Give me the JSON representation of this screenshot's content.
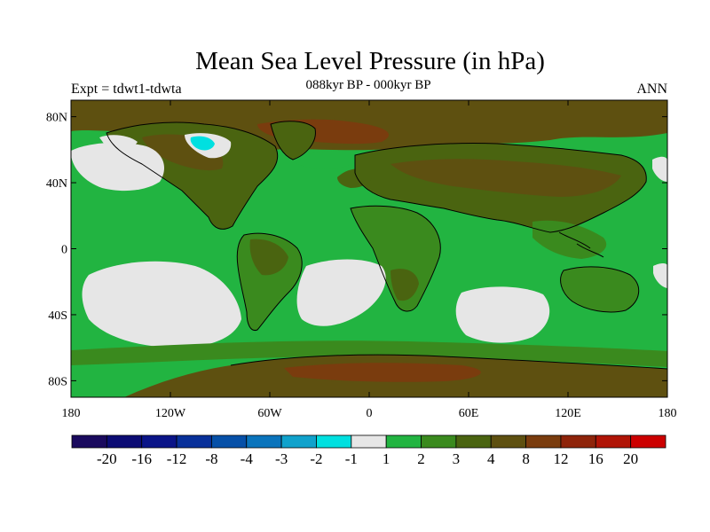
{
  "title": "Mean Sea Level Pressure (in hPa)",
  "subtitle": "088kyr BP - 000kyr BP",
  "left_label": "Expt = tdwt1-tdwta",
  "right_label": "ANN",
  "lat_ticks": [
    "80N",
    "40N",
    "0",
    "40S",
    "80S"
  ],
  "lon_ticks": [
    "180",
    "120W",
    "60W",
    "0",
    "60E",
    "120E",
    "180"
  ],
  "colorbar": {
    "colors": [
      "#1a0a5e",
      "#0c0c74",
      "#0a1488",
      "#08309a",
      "#0650a8",
      "#0a74bc",
      "#10a2cc",
      "#00e0e0",
      "#e6e6e6",
      "#22b441",
      "#3a8a1e",
      "#4a6410",
      "#5e5010",
      "#7a3c0e",
      "#8e240a",
      "#b01406",
      "#cc0000"
    ],
    "labels": [
      "-20",
      "-16",
      "-12",
      "-8",
      "-4",
      "-3",
      "-2",
      "-1",
      "1",
      "2",
      "3",
      "4",
      "8",
      "12",
      "16",
      "20"
    ]
  },
  "legend_colors": {
    "ocean_green": "#22b441",
    "land_olive": "#4a6410",
    "land_brown": "#5e5010",
    "mid_green": "#3a8a1e",
    "gray": "#e6e6e6",
    "cyan": "#00e0e0",
    "dark_brown": "#7a3c0e"
  }
}
